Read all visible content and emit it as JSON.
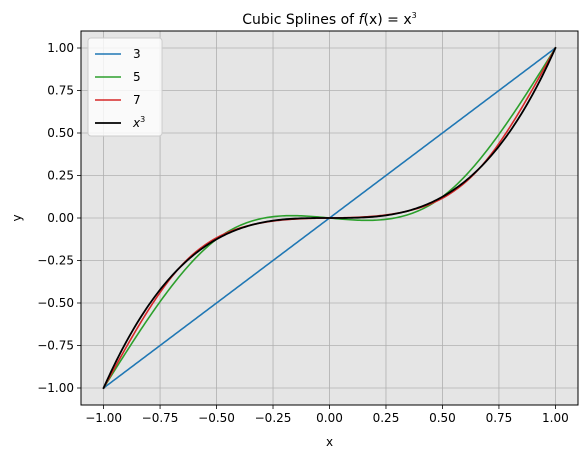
{
  "chart_data": {
    "type": "line",
    "title": {
      "prefix": "Cubic Splines of ",
      "math_f": "f",
      "math_rest": "(x) = x",
      "exponent": "3"
    },
    "xlabel": "x",
    "ylabel": "y",
    "xlim": [
      -1.1,
      1.1
    ],
    "ylim": [
      -1.1,
      1.1
    ],
    "grid": true,
    "legend_position": "upper-left",
    "background_color": "#e5e5e5",
    "grid_color": "#b0b0b0",
    "x_ticks": [
      -1.0,
      -0.75,
      -0.5,
      -0.25,
      0.0,
      0.25,
      0.5,
      0.75,
      1.0
    ],
    "y_ticks": [
      -1.0,
      -0.75,
      -0.5,
      -0.25,
      0.0,
      0.25,
      0.5,
      0.75,
      1.0
    ],
    "x_tick_labels": [
      "−1.00",
      "−0.75",
      "−0.50",
      "−0.25",
      "0.00",
      "0.25",
      "0.50",
      "0.75",
      "1.00"
    ],
    "y_tick_labels": [
      "−1.00",
      "−0.75",
      "−0.50",
      "−0.25",
      "0.00",
      "0.25",
      "0.50",
      "0.75",
      "1.00"
    ],
    "series": [
      {
        "name": "3",
        "color": "#1f77b4",
        "knots_x": [
          -1.0,
          0.0,
          1.0
        ],
        "knots_y": [
          -1.0,
          0.0,
          1.0
        ],
        "interpolation": "natural-cubic-spline"
      },
      {
        "name": "5",
        "color": "#2ca02c",
        "knots_x": [
          -1.0,
          -0.5,
          0.0,
          0.5,
          1.0
        ],
        "knots_y": [
          -1.0,
          -0.125,
          0.0,
          0.125,
          1.0
        ],
        "interpolation": "natural-cubic-spline"
      },
      {
        "name": "7",
        "color": "#d62728",
        "knots_x": [
          -1.0,
          -0.6667,
          -0.3333,
          0.0,
          0.3333,
          0.6667,
          1.0
        ],
        "knots_y": [
          -1.0,
          -0.2963,
          -0.037,
          0.0,
          0.037,
          0.2963,
          1.0
        ],
        "interpolation": "natural-cubic-spline"
      },
      {
        "name": "x^3",
        "legend_base": "x",
        "legend_exponent": "3",
        "color": "#000000",
        "function": "x^3",
        "x_range": [
          -1.0,
          1.0
        ]
      }
    ]
  }
}
